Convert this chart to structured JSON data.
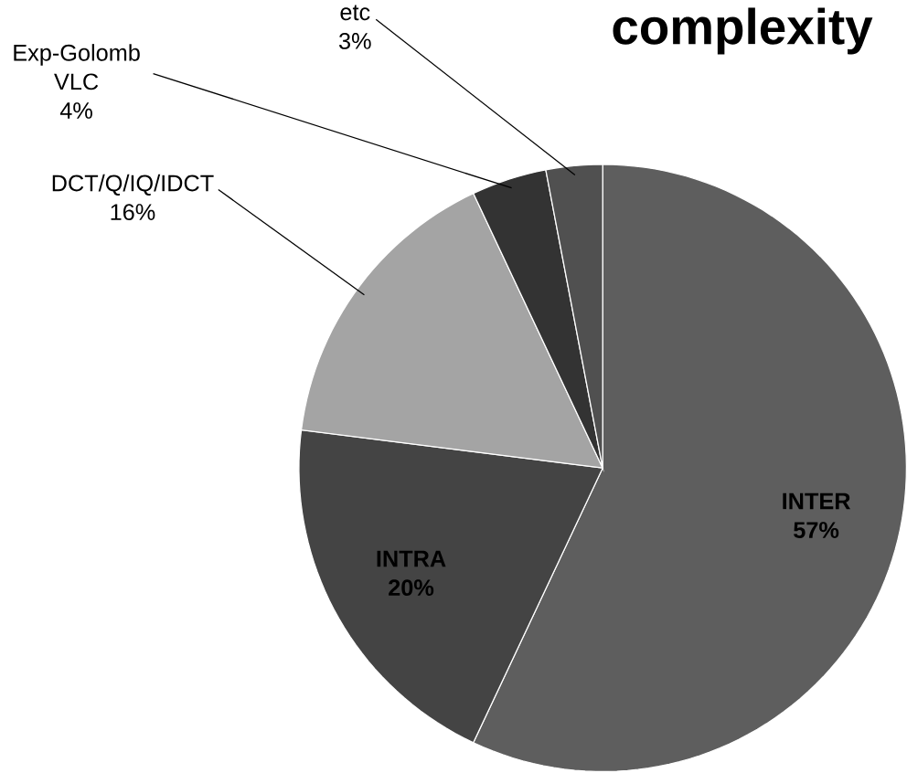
{
  "chart_data": {
    "type": "pie",
    "title": "complexity",
    "categories": [
      "INTER",
      "INTRA",
      "DCT/Q/IQ/IDCT",
      "Exp-Golomb VLC",
      "etc"
    ],
    "values": [
      57,
      20,
      16,
      4,
      3
    ],
    "colors": [
      "#5e5e5e",
      "#444444",
      "#a4a4a4",
      "#333333",
      "#505050"
    ],
    "value_labels": [
      "57%",
      "20%",
      "16%",
      "4%",
      "3%"
    ]
  }
}
